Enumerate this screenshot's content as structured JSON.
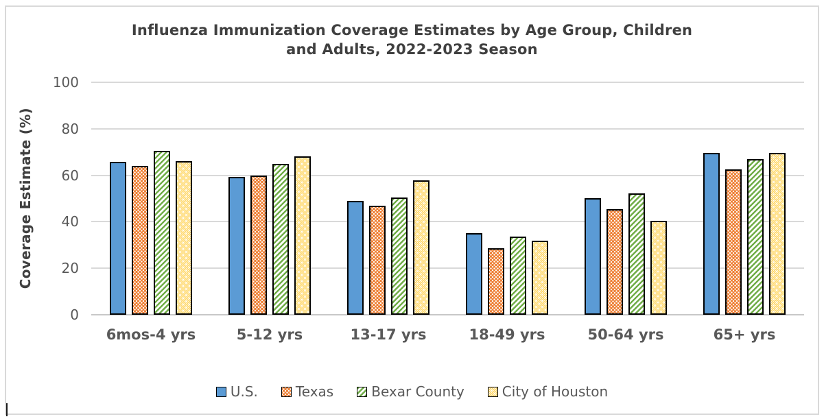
{
  "frame": {
    "border_color": "#D9D9D9"
  },
  "chart_data": {
    "type": "bar",
    "title": "Influenza Immunization Coverage Estimates by Age Group, Children and Adults, 2022-2023 Season",
    "title_lines": [
      "Influenza Immunization Coverage Estimates by Age Group, Children",
      "and Adults, 2022-2023 Season"
    ],
    "xlabel": "",
    "ylabel": "Coverage Estimate (%)",
    "ylim": [
      0,
      100
    ],
    "yticks": [
      0,
      20,
      40,
      60,
      80,
      100
    ],
    "grid": "horizontal",
    "legend_position": "bottom",
    "categories": [
      "6mos-4 yrs",
      "5-12 yrs",
      "13-17 yrs",
      "18-49 yrs",
      "50-64 yrs",
      "65+ yrs"
    ],
    "series": [
      {
        "name": "U.S.",
        "color": "#5B9BD5",
        "pattern": "solid",
        "values": [
          65.7,
          59.3,
          48.9,
          35.0,
          50.1,
          69.5
        ]
      },
      {
        "name": "Texas",
        "color": "#ED7D31",
        "pattern": "white-dots",
        "values": [
          63.9,
          60.0,
          47.0,
          28.5,
          45.4,
          62.4
        ]
      },
      {
        "name": "Bexar County",
        "color": "#70AD47",
        "pattern": "diagonal-hatch",
        "values": [
          70.5,
          64.8,
          50.4,
          33.6,
          52.1,
          67.0
        ]
      },
      {
        "name": "City of Houston",
        "color": "#FFC930",
        "pattern": "fine-white-dots",
        "values": [
          66.0,
          68.0,
          57.9,
          31.9,
          40.3,
          69.7
        ]
      }
    ]
  }
}
